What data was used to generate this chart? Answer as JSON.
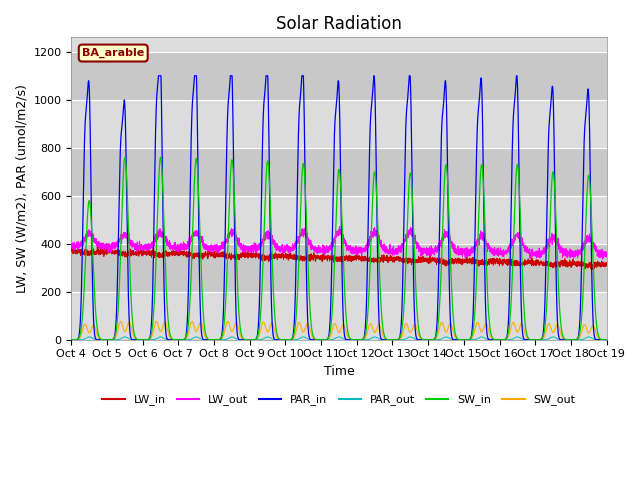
{
  "title": "Solar Radiation",
  "xlabel": "Time",
  "ylabel": "LW, SW (W/m2), PAR (umol/m2/s)",
  "annotation": "BA_arable",
  "ylim": [
    0,
    1260
  ],
  "yticks": [
    0,
    200,
    400,
    600,
    800,
    1000,
    1200
  ],
  "start_day": 4,
  "end_day": 19,
  "num_days": 15,
  "points_per_day": 288,
  "colors": {
    "LW_in": "#cc0000",
    "LW_out": "#ff00ff",
    "PAR_in": "#0000ee",
    "PAR_out": "#00bbbb",
    "SW_in": "#00cc00",
    "SW_out": "#ffaa00"
  },
  "bg_color": "#dcdcdc",
  "band_colors": [
    "#dcdcdc",
    "#c8c8c8"
  ],
  "title_fontsize": 12,
  "label_fontsize": 9,
  "tick_fontsize": 8
}
